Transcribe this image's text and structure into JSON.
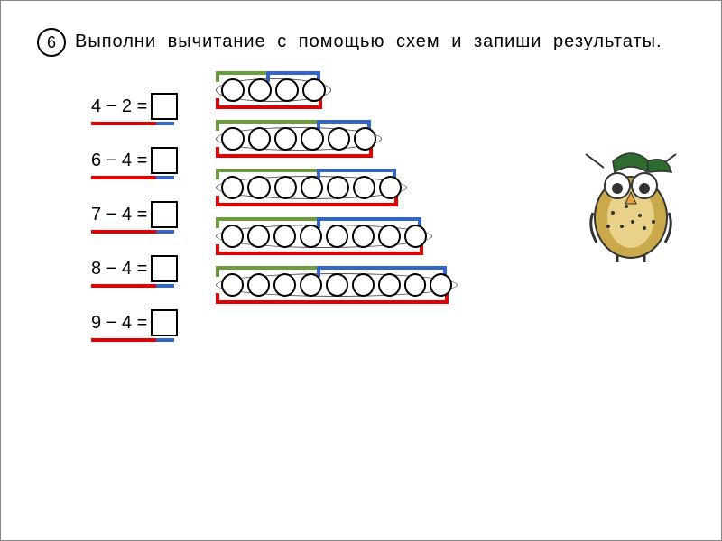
{
  "task": {
    "number": "6",
    "text": "Выполни вычитание с помощью схем и запиши результаты."
  },
  "equations": [
    {
      "left": "4 − 2 =",
      "underline_width": 72
    },
    {
      "left": "6 − 4 =",
      "underline_width": 72
    },
    {
      "left": "7 − 4 =",
      "underline_width": 72
    },
    {
      "left": "8 − 4 =",
      "underline_width": 72
    },
    {
      "left": "9 − 4 =",
      "underline_width": 72
    }
  ],
  "diagrams": [
    {
      "total": 4,
      "groupA": 2,
      "colorA": "g",
      "groupB": 2,
      "colorB": "b"
    },
    {
      "total": 6,
      "groupA": 4,
      "colorA": "g",
      "groupB": 2,
      "colorB": "b"
    },
    {
      "total": 7,
      "groupA": 4,
      "colorA": "g",
      "groupB": 3,
      "colorB": "b"
    },
    {
      "total": 8,
      "groupA": 4,
      "colorA": "g",
      "groupB": 4,
      "colorB": "b"
    },
    {
      "total": 9,
      "groupA": 4,
      "colorA": "g",
      "groupB": 5,
      "colorB": "b"
    }
  ],
  "colors": {
    "red": "#e60000",
    "green": "#6a9e3a",
    "blue": "#3366cc",
    "owl_body": "#c9a94a",
    "owl_dark": "#333333",
    "owl_hat": "#2e6b2e"
  },
  "circle_spacing": 28
}
